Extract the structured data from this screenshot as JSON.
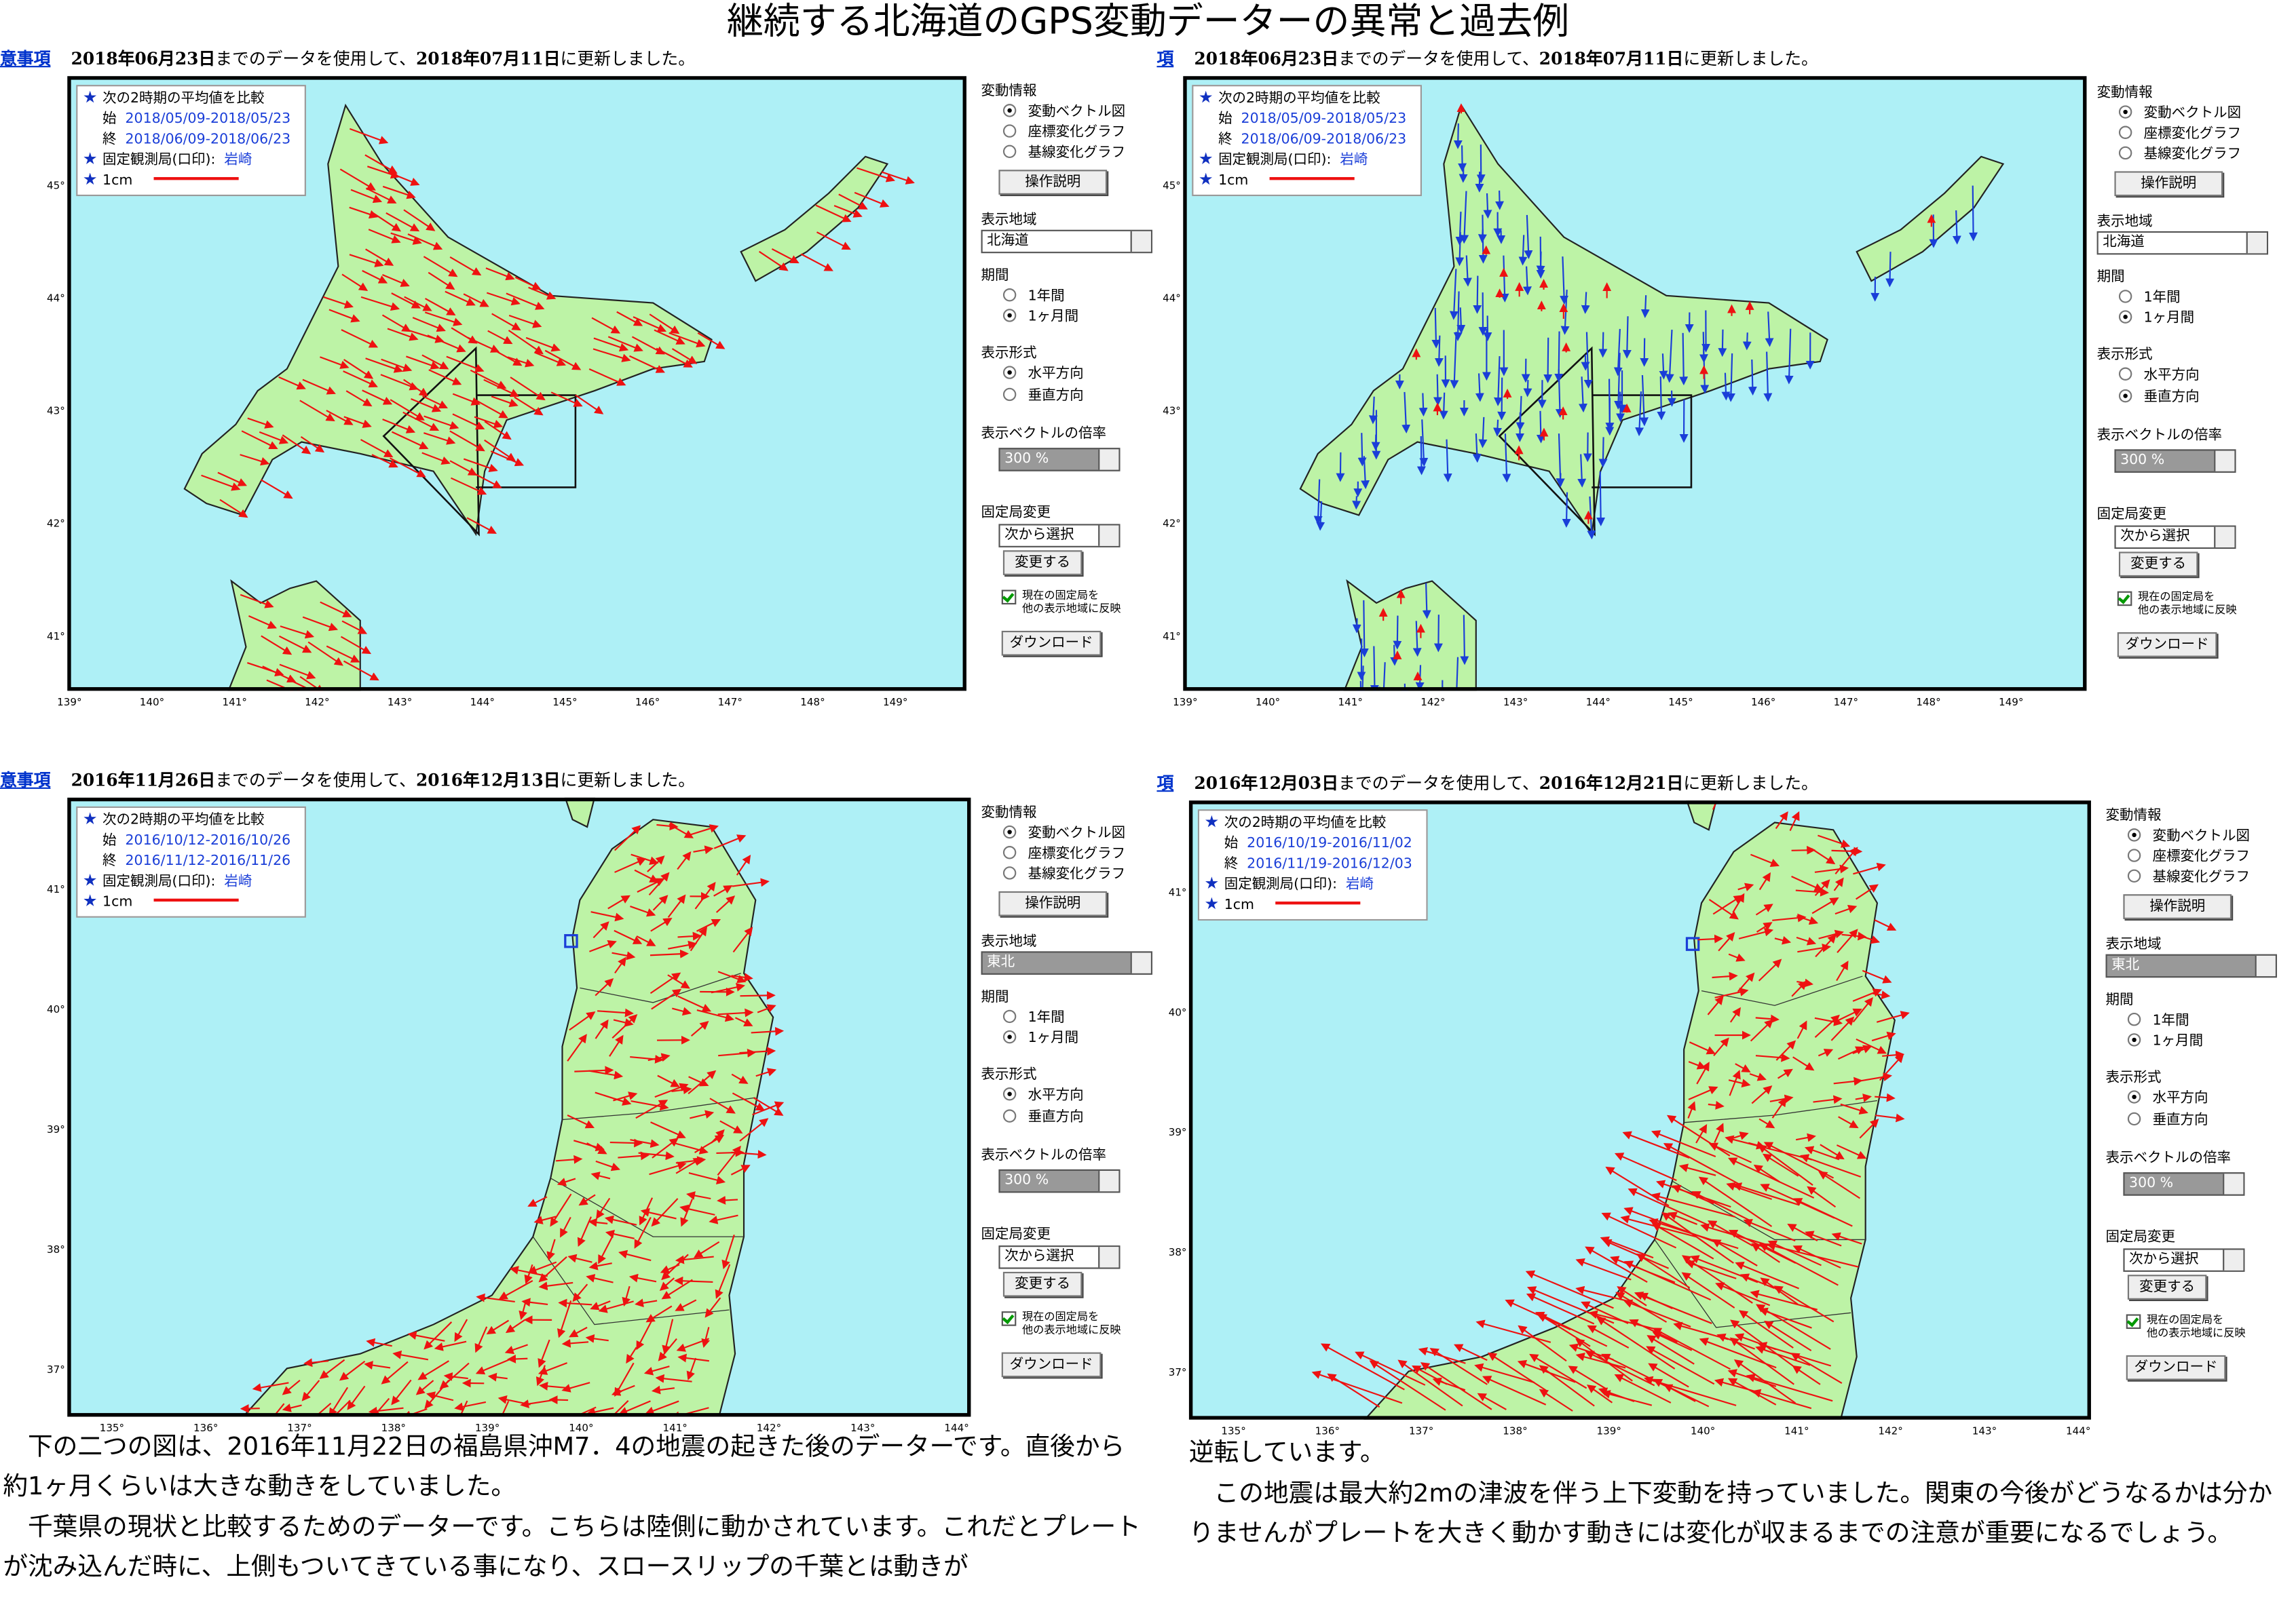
{
  "title": "継続する北海道のGPS変動データーの異常と過去例",
  "panels": [
    {
      "header": {
        "link": "意事項",
        "date1": "2018年06月23日",
        "mid": "までのデータを使用して、",
        "date2": "2018年07月11日",
        "end": "に更新しました。"
      },
      "legend": {
        "compare": "次の2時期の平均値を比較",
        "start_label": "始",
        "start": "2018/05/09-2018/05/23",
        "end_label": "終",
        "end": "2018/06/09-2018/06/23",
        "fixed": "固定観測局(口印):",
        "fixed_name": "岩崎",
        "scale": "1cm"
      },
      "lat_labels": [
        "45°",
        "44°",
        "43°",
        "42°",
        "41°"
      ],
      "lon_labels": [
        "139°",
        "140°",
        "141°",
        "142°",
        "143°",
        "144°",
        "145°",
        "146°",
        "147°",
        "148°",
        "149°"
      ],
      "controls": {
        "info": "変動情報",
        "info_options": [
          "変動ベクトル図",
          "座標変化グラフ",
          "基線変化グラフ"
        ],
        "help": "操作説明",
        "region_label": "表示地域",
        "region": "北海道",
        "period": "期間",
        "period_options": [
          "1年間",
          "1ヶ月間"
        ],
        "format": "表示形式",
        "format_options": [
          "水平方向",
          "垂直方向"
        ],
        "scale_label": "表示ベクトルの倍率",
        "scale": "300 %",
        "fixed_change": "固定局変更",
        "fixed_select": "次から選択",
        "change": "変更する",
        "reflect": [
          "現在の固定局を",
          "他の表示地域に反映"
        ],
        "download": "ダウンロード"
      }
    },
    {
      "header": {
        "link": "項",
        "date1": "2018年06月23日",
        "mid": "までのデータを使用して、",
        "date2": "2018年07月11日",
        "end": "に更新しました。"
      },
      "legend": {
        "compare": "次の2時期の平均値を比較",
        "start_label": "始",
        "start": "2018/05/09-2018/05/23",
        "end_label": "終",
        "end": "2018/06/09-2018/06/23",
        "fixed": "固定観測局(口印):",
        "fixed_name": "岩崎",
        "scale": "1cm"
      },
      "lat_labels": [
        "45°",
        "44°",
        "43°",
        "42°",
        "41°"
      ],
      "lon_labels": [
        "139°",
        "140°",
        "141°",
        "142°",
        "143°",
        "144°",
        "145°",
        "146°",
        "147°",
        "148°",
        "149°"
      ],
      "controls": {
        "info": "変動情報",
        "info_options": [
          "変動ベクトル図",
          "座標変化グラフ",
          "基線変化グラフ"
        ],
        "help": "操作説明",
        "region_label": "表示地域",
        "region": "北海道",
        "period": "期間",
        "period_options": [
          "1年間",
          "1ヶ月間"
        ],
        "format": "表示形式",
        "format_options": [
          "水平方向",
          "垂直方向"
        ],
        "scale_label": "表示ベクトルの倍率",
        "scale": "300 %",
        "fixed_change": "固定局変更",
        "fixed_select": "次から選択",
        "change": "変更する",
        "reflect": [
          "現在の固定局を",
          "他の表示地域に反映"
        ],
        "download": "ダウンロード"
      }
    },
    {
      "header": {
        "link": "意事項",
        "date1": "2016年11月26日",
        "mid": "までのデータを使用して、",
        "date2": "2016年12月13日",
        "end": "に更新しました。"
      },
      "legend": {
        "compare": "次の2時期の平均値を比較",
        "start_label": "始",
        "start": "2016/10/12-2016/10/26",
        "end_label": "終",
        "end": "2016/11/12-2016/11/26",
        "fixed": "固定観測局(口印):",
        "fixed_name": "岩崎",
        "scale": "1cm"
      },
      "lat_labels": [
        "41°",
        "40°",
        "39°",
        "38°",
        "37°"
      ],
      "lon_labels": [
        "135°",
        "136°",
        "137°",
        "138°",
        "139°",
        "140°",
        "141°",
        "142°",
        "143°",
        "144°"
      ],
      "controls": {
        "info": "変動情報",
        "info_options": [
          "変動ベクトル図",
          "座標変化グラフ",
          "基線変化グラフ"
        ],
        "help": "操作説明",
        "region_label": "表示地域",
        "region": "東北",
        "period": "期間",
        "period_options": [
          "1年間",
          "1ヶ月間"
        ],
        "format": "表示形式",
        "format_options": [
          "水平方向",
          "垂直方向"
        ],
        "scale_label": "表示ベクトルの倍率",
        "scale": "300 %",
        "fixed_change": "固定局変更",
        "fixed_select": "次から選択",
        "change": "変更する",
        "reflect": [
          "現在の固定局を",
          "他の表示地域に反映"
        ],
        "download": "ダウンロード"
      }
    },
    {
      "header": {
        "link": "項",
        "date1": "2016年12月03日",
        "mid": "までのデータを使用して、",
        "date2": "2016年12月21日",
        "end": "に更新しました。"
      },
      "legend": {
        "compare": "次の2時期の平均値を比較",
        "start_label": "始",
        "start": "2016/10/19-2016/11/02",
        "end_label": "終",
        "end": "2016/11/19-2016/12/03",
        "fixed": "固定観測局(口印):",
        "fixed_name": "岩崎",
        "scale": "1cm"
      },
      "lat_labels": [
        "41°",
        "40°",
        "39°",
        "38°",
        "37°"
      ],
      "lon_labels": [
        "135°",
        "136°",
        "137°",
        "138°",
        "139°",
        "140°",
        "141°",
        "142°",
        "143°",
        "144°"
      ],
      "controls": {
        "info": "変動情報",
        "info_options": [
          "変動ベクトル図",
          "座標変化グラフ",
          "基線変化グラフ"
        ],
        "help": "操作説明",
        "region_label": "表示地域",
        "region": "東北",
        "period": "期間",
        "period_options": [
          "1年間",
          "1ヶ月間"
        ],
        "format": "表示形式",
        "format_options": [
          "水平方向",
          "垂直方向"
        ],
        "scale_label": "表示ベクトルの倍率",
        "scale": "300 %",
        "fixed_change": "固定局変更",
        "fixed_select": "次から選択",
        "change": "変更する",
        "reflect": [
          "現在の固定局を",
          "他の表示地域に反映"
        ],
        "download": "ダウンロード"
      }
    }
  ],
  "text_left": [
    "下の二つの図は、2016年11月22日の福島県沖M7．4の地震の起きた後のデーターです。直後から約1ヶ月くらいは大きな動きをしていました。",
    "千葉県の現状と比較するためのデーターです。こちらは陸側に動かされています。これだとプレートが沈み込んだ時に、上側もついてきている事になり、スロースリップの千葉とは動きが"
  ],
  "text_right": [
    "逆転しています。",
    "この地震は最大約2mの津波を伴う上下変動を持っていました。関東の今後がどうなるかは分かりませんがプレートを大きく動かす動きには変化が収まるまでの注意が重要になるでしょう。"
  ]
}
